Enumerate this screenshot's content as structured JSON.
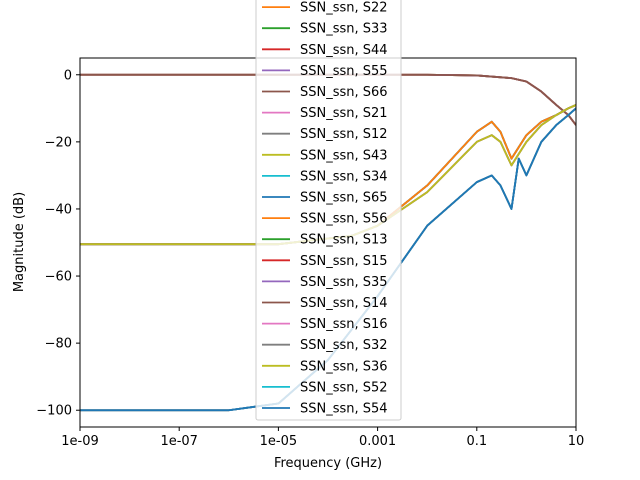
{
  "chart_data": {
    "type": "line",
    "title": "",
    "xlabel": "Frequency (GHz)",
    "ylabel": "Magnitude (dB)",
    "xscale": "log",
    "xlim": [
      1e-09,
      10
    ],
    "ylim": [
      -105,
      5
    ],
    "grid": false,
    "legend_placement": "upper center (clipped above axes)",
    "x_tick_labels": [
      {
        "value": 1e-09,
        "label": "1e-09"
      },
      {
        "value": 1e-07,
        "label": "1e-07"
      },
      {
        "value": 1e-05,
        "label": "1e-05"
      },
      {
        "value": 0.001,
        "label": "0.001"
      },
      {
        "value": 0.1,
        "label": "0.1"
      },
      {
        "value": 10,
        "label": "10"
      }
    ],
    "y_tick_labels": [
      {
        "value": 0,
        "label": "0"
      },
      {
        "value": -20,
        "label": "−20"
      },
      {
        "value": -40,
        "label": "−40"
      },
      {
        "value": -60,
        "label": "−60"
      },
      {
        "value": -80,
        "label": "−80"
      },
      {
        "value": -100,
        "label": "−100"
      }
    ],
    "series": [
      {
        "name": "SSN_ssn, S22",
        "color": "#ff7f0e",
        "x": [
          1e-09,
          1e-05,
          0.01,
          0.1,
          0.5,
          1,
          2,
          4,
          7,
          10
        ],
        "y": [
          0,
          0,
          0,
          -0.2,
          -1,
          -2,
          -5,
          -9,
          -12,
          -15
        ]
      },
      {
        "name": "SSN_ssn, S33",
        "color": "#2ca02c",
        "x": [
          1e-09,
          1e-05,
          0.01,
          0.1,
          0.5,
          1,
          2,
          4,
          7,
          10
        ],
        "y": [
          0,
          0,
          0,
          -0.2,
          -1,
          -2,
          -5,
          -9,
          -12,
          -15
        ]
      },
      {
        "name": "SSN_ssn, S44",
        "color": "#d62728",
        "x": [
          1e-09,
          1e-05,
          0.01,
          0.1,
          0.5,
          1,
          2,
          4,
          7,
          10
        ],
        "y": [
          0,
          0,
          0,
          -0.2,
          -1,
          -2,
          -5,
          -9,
          -12,
          -15
        ]
      },
      {
        "name": "SSN_ssn, S55",
        "color": "#9467bd",
        "x": [
          1e-09,
          1e-05,
          0.01,
          0.1,
          0.5,
          1,
          2,
          4,
          7,
          10
        ],
        "y": [
          0,
          0,
          0,
          -0.2,
          -1,
          -2,
          -5,
          -9,
          -12,
          -15
        ]
      },
      {
        "name": "SSN_ssn, S66",
        "color": "#8c564b",
        "x": [
          1e-09,
          1e-05,
          0.01,
          0.1,
          0.5,
          1,
          2,
          4,
          7,
          10
        ],
        "y": [
          0,
          0,
          0,
          -0.2,
          -1,
          -2,
          -5,
          -9,
          -12,
          -15
        ]
      },
      {
        "name": "SSN_ssn, S21",
        "color": "#e377c2",
        "x": [
          1e-09,
          1e-05,
          0.0003,
          0.001,
          0.01,
          0.1,
          0.2,
          0.3,
          0.5,
          1,
          2,
          4,
          7,
          10
        ],
        "y": [
          -50.5,
          -50.5,
          -48,
          -45,
          -33,
          -17,
          -14,
          -17,
          -25,
          -18,
          -14,
          -12,
          -10,
          -9
        ]
      },
      {
        "name": "SSN_ssn, S12",
        "color": "#7f7f7f",
        "x": [
          1e-09,
          1e-05,
          0.0003,
          0.001,
          0.01,
          0.1,
          0.2,
          0.3,
          0.5,
          1,
          2,
          4,
          7,
          10
        ],
        "y": [
          -50.5,
          -50.5,
          -48,
          -45,
          -33,
          -17,
          -14,
          -17,
          -25,
          -18,
          -14,
          -12,
          -10,
          -9
        ]
      },
      {
        "name": "SSN_ssn, S43",
        "color": "#bcbd22",
        "x": [
          1e-09,
          1e-05,
          0.0003,
          0.001,
          0.01,
          0.1,
          0.2,
          0.3,
          0.5,
          1,
          2,
          4,
          7,
          10
        ],
        "y": [
          -50.5,
          -50.5,
          -48,
          -45,
          -33,
          -17,
          -14,
          -17,
          -25,
          -18,
          -14,
          -12,
          -10,
          -9
        ]
      },
      {
        "name": "SSN_ssn, S34",
        "color": "#17becf",
        "x": [
          1e-09,
          1e-05,
          0.0003,
          0.001,
          0.01,
          0.1,
          0.2,
          0.3,
          0.5,
          1,
          2,
          4,
          7,
          10
        ],
        "y": [
          -50.5,
          -50.5,
          -48,
          -45,
          -33,
          -17,
          -14,
          -17,
          -25,
          -18,
          -14,
          -12,
          -10,
          -9
        ]
      },
      {
        "name": "SSN_ssn, S65",
        "color": "#1f77b4",
        "x": [
          1e-09,
          1e-05,
          0.0003,
          0.001,
          0.01,
          0.1,
          0.2,
          0.3,
          0.5,
          1,
          2,
          4,
          7,
          10
        ],
        "y": [
          -50.5,
          -50.5,
          -48,
          -45,
          -33,
          -17,
          -14,
          -17,
          -25,
          -18,
          -14,
          -12,
          -10,
          -9
        ]
      },
      {
        "name": "SSN_ssn, S56",
        "color": "#ff7f0e",
        "x": [
          1e-09,
          1e-05,
          0.0003,
          0.001,
          0.01,
          0.1,
          0.2,
          0.3,
          0.5,
          1,
          2,
          4,
          7,
          10
        ],
        "y": [
          -50.5,
          -50.5,
          -48,
          -45,
          -33,
          -17,
          -14,
          -17,
          -25,
          -18,
          -14,
          -12,
          -10,
          -9
        ]
      },
      {
        "name": "SSN_ssn, S13",
        "color": "#2ca02c",
        "x": [
          1e-09,
          1e-06,
          1e-05,
          0.0001,
          0.001,
          0.01,
          0.1,
          0.2,
          0.3,
          0.5,
          0.7,
          1,
          2,
          4,
          7,
          10
        ],
        "y": [
          -100,
          -100,
          -98,
          -85,
          -66,
          -45,
          -32,
          -30,
          -33,
          -40,
          -25,
          -30,
          -20,
          -15,
          -12,
          -10
        ]
      },
      {
        "name": "SSN_ssn, S15",
        "color": "#d62728",
        "x": [
          1e-09,
          1e-06,
          1e-05,
          0.0001,
          0.001,
          0.01,
          0.1,
          0.2,
          0.3,
          0.5,
          0.7,
          1,
          2,
          4,
          7,
          10
        ],
        "y": [
          -100,
          -100,
          -98,
          -85,
          -66,
          -45,
          -32,
          -30,
          -33,
          -40,
          -25,
          -30,
          -20,
          -15,
          -12,
          -10
        ]
      },
      {
        "name": "SSN_ssn, S35",
        "color": "#9467bd",
        "x": [
          1e-09,
          1e-06,
          1e-05,
          0.0001,
          0.001,
          0.01,
          0.1,
          0.2,
          0.3,
          0.5,
          0.7,
          1,
          2,
          4,
          7,
          10
        ],
        "y": [
          -100,
          -100,
          -98,
          -85,
          -66,
          -45,
          -32,
          -30,
          -33,
          -40,
          -25,
          -30,
          -20,
          -15,
          -12,
          -10
        ]
      },
      {
        "name": "SSN_ssn, S14",
        "color": "#8c564b",
        "x": [
          1e-09,
          1e-05,
          0.0003,
          0.001,
          0.01,
          0.1,
          0.2,
          0.3,
          0.5,
          1,
          2,
          4,
          7,
          10
        ],
        "y": [
          -50.5,
          -50.5,
          -48,
          -45,
          -35,
          -20,
          -18,
          -20,
          -27,
          -20,
          -15,
          -12,
          -10,
          -9
        ]
      },
      {
        "name": "SSN_ssn, S16",
        "color": "#e377c2",
        "x": [
          1e-09,
          1e-05,
          0.0003,
          0.001,
          0.01,
          0.1,
          0.2,
          0.3,
          0.5,
          1,
          2,
          4,
          7,
          10
        ],
        "y": [
          -50.5,
          -50.5,
          -48,
          -45,
          -35,
          -20,
          -18,
          -20,
          -27,
          -20,
          -15,
          -12,
          -10,
          -9
        ]
      },
      {
        "name": "SSN_ssn, S32",
        "color": "#7f7f7f",
        "x": [
          1e-09,
          1e-05,
          0.0003,
          0.001,
          0.01,
          0.1,
          0.2,
          0.3,
          0.5,
          1,
          2,
          4,
          7,
          10
        ],
        "y": [
          -50.5,
          -50.5,
          -48,
          -45,
          -35,
          -20,
          -18,
          -20,
          -27,
          -20,
          -15,
          -12,
          -10,
          -9
        ]
      },
      {
        "name": "SSN_ssn, S36",
        "color": "#bcbd22",
        "x": [
          1e-09,
          1e-05,
          0.0003,
          0.001,
          0.01,
          0.1,
          0.2,
          0.3,
          0.5,
          1,
          2,
          4,
          7,
          10
        ],
        "y": [
          -50.5,
          -50.5,
          -48,
          -45,
          -35,
          -20,
          -18,
          -20,
          -27,
          -20,
          -15,
          -12,
          -10,
          -9
        ]
      },
      {
        "name": "SSN_ssn, S52",
        "color": "#17becf",
        "x": [
          1e-09,
          1e-06,
          1e-05,
          0.0001,
          0.001,
          0.01,
          0.1,
          0.2,
          0.3,
          0.5,
          0.7,
          1,
          2,
          4,
          7,
          10
        ],
        "y": [
          -100,
          -100,
          -98,
          -85,
          -66,
          -45,
          -32,
          -30,
          -33,
          -40,
          -25,
          -30,
          -20,
          -15,
          -12,
          -10
        ]
      },
      {
        "name": "SSN_ssn, S54",
        "color": "#1f77b4",
        "x": [
          1e-09,
          1e-06,
          1e-05,
          0.0001,
          0.001,
          0.01,
          0.1,
          0.2,
          0.3,
          0.5,
          0.7,
          1,
          2,
          4,
          7,
          10
        ],
        "y": [
          -100,
          -100,
          -98,
          -85,
          -66,
          -45,
          -32,
          -30,
          -33,
          -40,
          -25,
          -30,
          -20,
          -15,
          -12,
          -10
        ]
      }
    ]
  }
}
